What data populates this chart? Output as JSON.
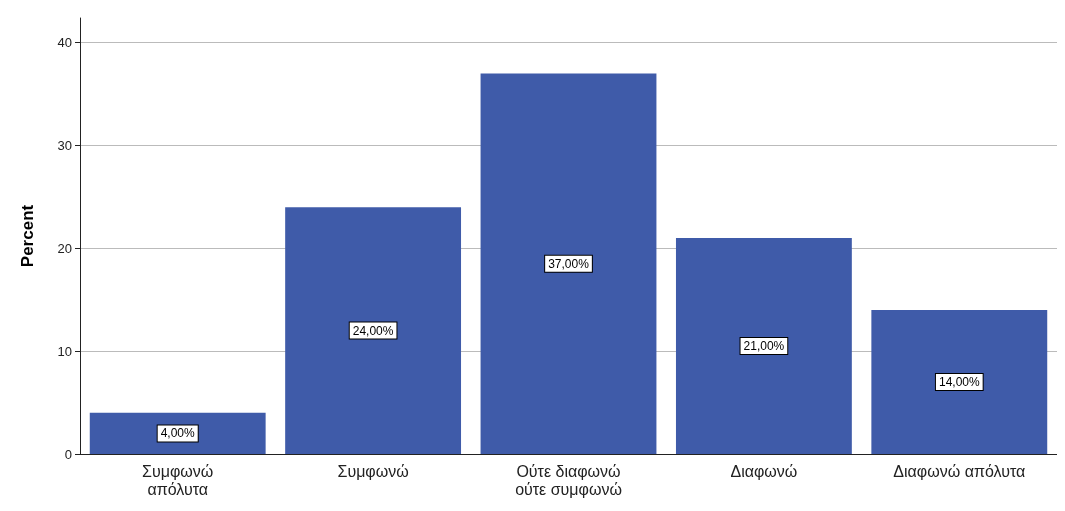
{
  "chart_data": {
    "type": "bar",
    "ylabel": "Percent",
    "categories": [
      "Συμφωνώ\nαπόλυτα",
      "Συμφωνώ",
      "Ούτε διαφωνώ\nούτε συμφωνώ",
      "Διαφωνώ",
      "Διαφωνώ απόλυτα"
    ],
    "values": [
      4,
      24,
      37,
      21,
      14
    ],
    "value_labels": [
      "4,00%",
      "24,00%",
      "37,00%",
      "21,00%",
      "14,00%"
    ],
    "color": "#3f5ba9",
    "ylim": [
      0,
      42.4
    ],
    "yticks": [
      0,
      10,
      20,
      30,
      40
    ],
    "grid": "y"
  }
}
